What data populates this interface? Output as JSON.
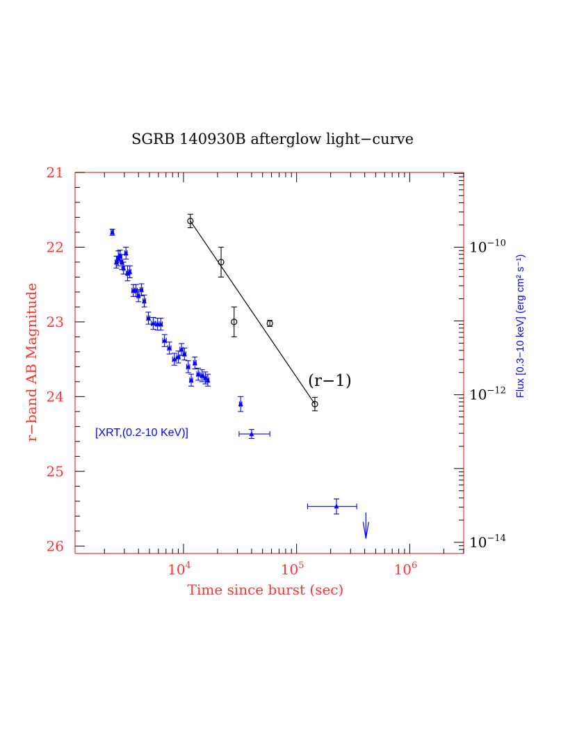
{
  "chart_data": {
    "type": "scatter",
    "title": "SGRB 140930B afterglow light−curve",
    "xlabel": "Time since burst (sec)",
    "ylabel": "r−band AB Magnitude",
    "ylabel_right": "Flux [0.3−10 keV] (erg cm² s⁻¹)",
    "x_scale": "log",
    "xlim": [
      1100,
      3000000
    ],
    "ylim": [
      26.1,
      21.0
    ],
    "flux_axis_mag_ticks": [
      22.0,
      23.95,
      25.95
    ],
    "x_tick_labels": [
      {
        "base": "10",
        "exp": "4",
        "value": 10000
      },
      {
        "base": "10",
        "exp": "5",
        "value": 100000
      },
      {
        "base": "10",
        "exp": "6",
        "value": 1000000
      }
    ],
    "y_tick_labels": [
      "21",
      "22",
      "23",
      "24",
      "25",
      "26"
    ],
    "y_ticks_right_labels": [
      {
        "base": "10",
        "exp": "−10",
        "flux": 1e-10
      },
      {
        "base": "10",
        "exp": "−12",
        "flux": 1e-12
      },
      {
        "base": "10",
        "exp": "−14",
        "flux": 1e-14
      }
    ],
    "axis_color": "#ff3030",
    "right_axis_color": "#000000",
    "optical_color": "#000000",
    "xrt_color": "#0000ff",
    "annotations": {
      "r_label": "(r−1)",
      "xrt_label": "[XRT,(0.2-10 KeV)]"
    },
    "series": [
      {
        "name": "(r−1)",
        "marker": "open-circle",
        "color": "#000000",
        "points": [
          {
            "x": 11500,
            "y": 21.65,
            "yerr": 0.09
          },
          {
            "x": 21500,
            "y": 22.2,
            "yerr": 0.2
          },
          {
            "x": 28000,
            "y": 23.0,
            "yerr": 0.2
          },
          {
            "x": 58000,
            "y": 23.02,
            "yerr": 0.04
          },
          {
            "x": 145000,
            "y": 24.1,
            "yerr": 0.09
          }
        ],
        "fit_line": {
          "x": [
            11500,
            145000
          ],
          "y": [
            21.65,
            24.1
          ]
        }
      },
      {
        "name": "[XRT,(0.2-10 KeV)]",
        "marker": "filled-triangle",
        "color": "#0000ff",
        "points": [
          {
            "x": 2350,
            "y": 21.8,
            "xerr": 60,
            "yerr": 0.04
          },
          {
            "x": 2550,
            "y": 22.2,
            "xerr": 60,
            "yerr": 0.08
          },
          {
            "x": 2650,
            "y": 22.15,
            "xerr": 60,
            "yerr": 0.1
          },
          {
            "x": 2750,
            "y": 22.12,
            "xerr": 60,
            "yerr": 0.08
          },
          {
            "x": 2850,
            "y": 22.2,
            "xerr": 60,
            "yerr": 0.1
          },
          {
            "x": 2950,
            "y": 22.28,
            "xerr": 60,
            "yerr": 0.08
          },
          {
            "x": 3100,
            "y": 22.08,
            "xerr": 80,
            "yerr": 0.08
          },
          {
            "x": 3200,
            "y": 22.35,
            "xerr": 80,
            "yerr": 0.1
          },
          {
            "x": 3350,
            "y": 22.33,
            "xerr": 80,
            "yerr": 0.08
          },
          {
            "x": 3600,
            "y": 22.58,
            "xerr": 100,
            "yerr": 0.08
          },
          {
            "x": 3800,
            "y": 22.58,
            "xerr": 100,
            "yerr": 0.08
          },
          {
            "x": 4000,
            "y": 22.65,
            "xerr": 100,
            "yerr": 0.08
          },
          {
            "x": 4250,
            "y": 22.57,
            "xerr": 120,
            "yerr": 0.08
          },
          {
            "x": 4500,
            "y": 22.72,
            "xerr": 120,
            "yerr": 0.08
          },
          {
            "x": 4900,
            "y": 22.95,
            "xerr": 150,
            "yerr": 0.08
          },
          {
            "x": 5400,
            "y": 23.02,
            "xerr": 200,
            "yerr": 0.08
          },
          {
            "x": 5900,
            "y": 23.03,
            "xerr": 200,
            "yerr": 0.08
          },
          {
            "x": 6300,
            "y": 23.03,
            "xerr": 200,
            "yerr": 0.08
          },
          {
            "x": 6800,
            "y": 23.25,
            "xerr": 250,
            "yerr": 0.08
          },
          {
            "x": 7500,
            "y": 23.35,
            "xerr": 250,
            "yerr": 0.08
          },
          {
            "x": 8300,
            "y": 23.5,
            "xerr": 300,
            "yerr": 0.08
          },
          {
            "x": 9000,
            "y": 23.47,
            "xerr": 300,
            "yerr": 0.08
          },
          {
            "x": 9600,
            "y": 23.37,
            "xerr": 300,
            "yerr": 0.08
          },
          {
            "x": 10200,
            "y": 23.43,
            "xerr": 300,
            "yerr": 0.08
          },
          {
            "x": 11000,
            "y": 23.6,
            "xerr": 350,
            "yerr": 0.08
          },
          {
            "x": 11700,
            "y": 23.78,
            "xerr": 350,
            "yerr": 0.08
          },
          {
            "x": 12600,
            "y": 23.55,
            "xerr": 350,
            "yerr": 0.08
          },
          {
            "x": 13500,
            "y": 23.7,
            "xerr": 400,
            "yerr": 0.08
          },
          {
            "x": 14600,
            "y": 23.72,
            "xerr": 400,
            "yerr": 0.08
          },
          {
            "x": 15600,
            "y": 23.75,
            "xerr": 400,
            "yerr": 0.08
          },
          {
            "x": 16400,
            "y": 23.78,
            "xerr": 400,
            "yerr": 0.08
          },
          {
            "x": 32000,
            "y": 24.1,
            "xerr": 800,
            "yerr": 0.1
          },
          {
            "x": 40000,
            "y": 24.5,
            "xerr_lo": 9000,
            "xerr_hi": 18000,
            "yerr": 0.06
          },
          {
            "x": 225000,
            "y": 25.47,
            "xerr_lo": 100000,
            "xerr_hi": 115000,
            "yerr": 0.1
          }
        ],
        "upper_limits": [
          {
            "x": 410000,
            "y_top": 25.55,
            "y_bottom": 25.9
          }
        ]
      }
    ]
  }
}
